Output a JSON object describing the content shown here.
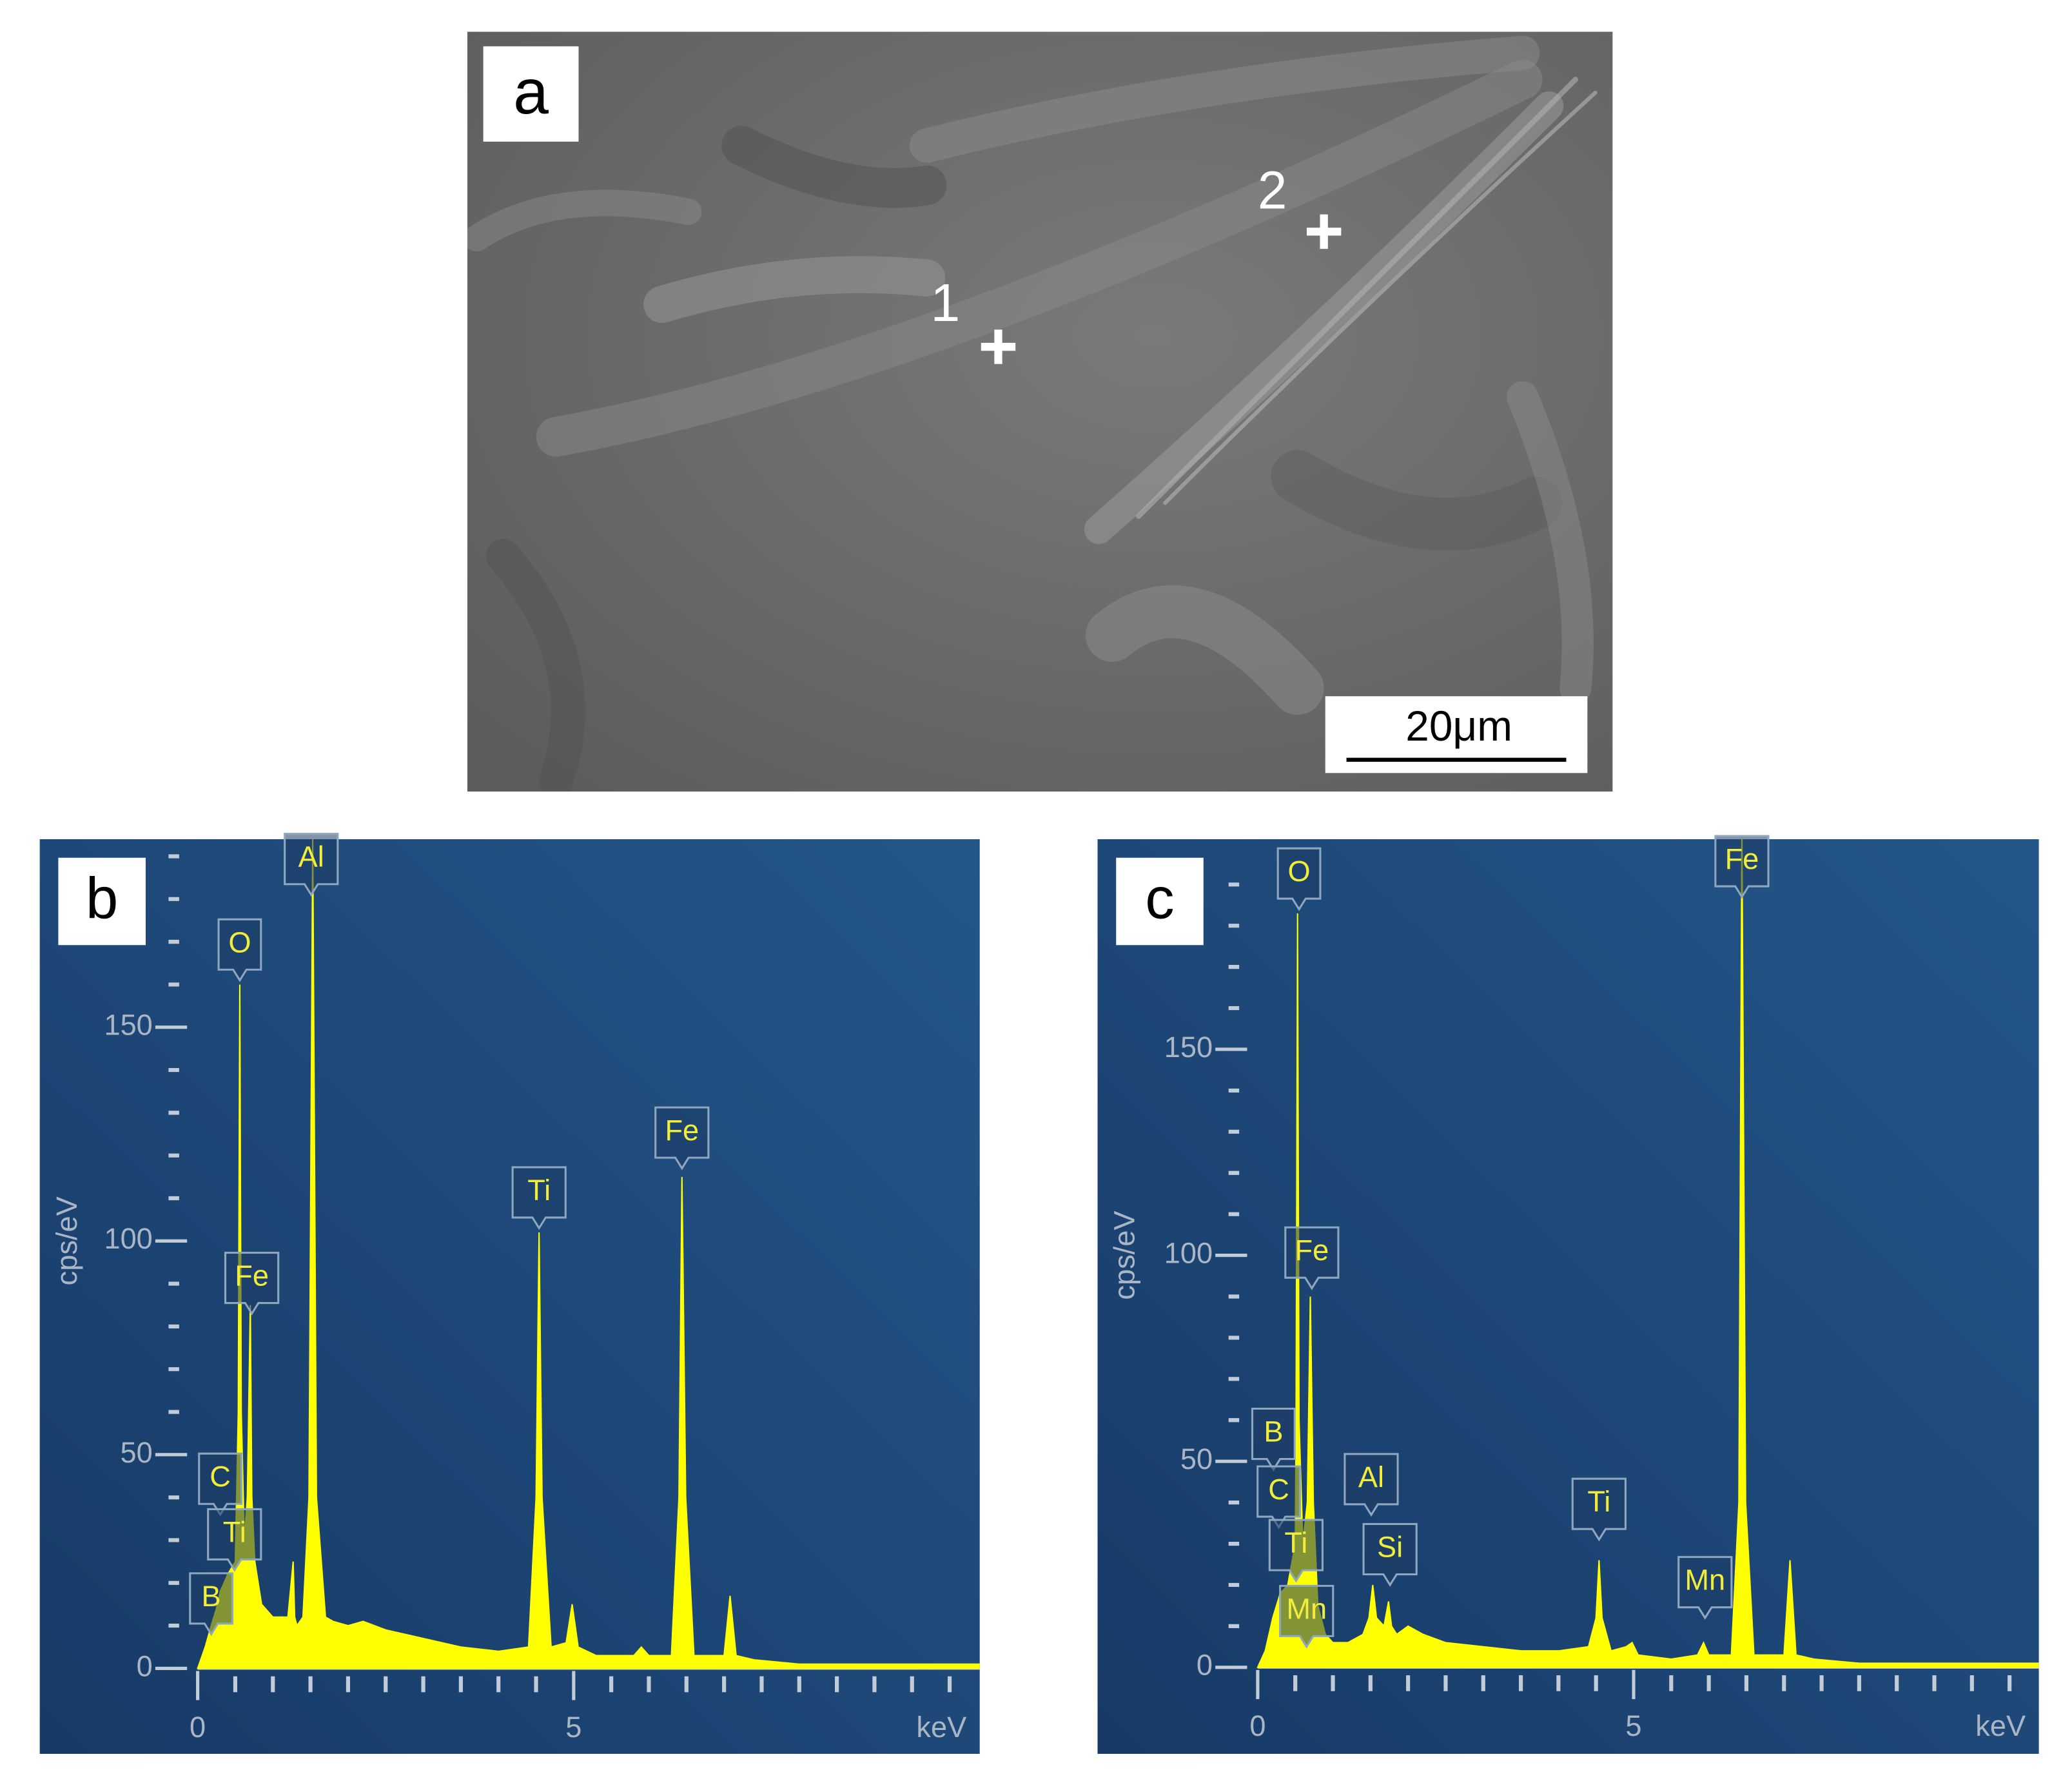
{
  "image": {
    "panel_label": "a",
    "points": [
      "1",
      "2"
    ],
    "scale_bar": "20μm"
  },
  "chart_data": [
    {
      "type": "area",
      "panel_label": "b",
      "x_label": "keV",
      "y_label": "cps/eV",
      "color": "#ffff00",
      "xlim": [
        -2.1,
        10.4
      ],
      "ylim": [
        -20,
        194
      ],
      "xticks": [
        0,
        5
      ],
      "yticks": [
        0,
        50,
        100,
        150
      ],
      "xminorticks": [
        0.5,
        1,
        1.5,
        2,
        2.5,
        3,
        3.5,
        4,
        4.5,
        5.5,
        6,
        6.5,
        7,
        7.5,
        8,
        8.5,
        9,
        9.5,
        10
      ],
      "yminorticks": [
        10,
        20,
        30,
        40,
        60,
        70,
        80,
        90,
        110,
        120,
        130,
        140,
        160,
        170,
        180,
        190
      ],
      "x": [
        0,
        0.1,
        0.18,
        0.25,
        0.3,
        0.4,
        0.5,
        0.54,
        0.56,
        0.58,
        0.62,
        0.66,
        0.7,
        0.72,
        0.76,
        0.85,
        1.0,
        1.2,
        1.27,
        1.29,
        1.32,
        1.4,
        1.48,
        1.53,
        1.58,
        1.7,
        1.8,
        2.0,
        2.2,
        2.5,
        3.0,
        3.5,
        4.0,
        4.4,
        4.5,
        4.54,
        4.58,
        4.7,
        4.9,
        4.98,
        5.06,
        5.3,
        5.8,
        5.9,
        6.0,
        6.3,
        6.4,
        6.44,
        6.49,
        6.6,
        7.0,
        7.08,
        7.16,
        7.4,
        8.0,
        9.0,
        10.0,
        10.4
      ],
      "values": [
        0,
        5,
        10,
        14,
        18,
        22,
        25,
        60,
        160,
        60,
        30,
        40,
        85,
        40,
        25,
        15,
        12,
        12,
        25,
        12,
        10,
        12,
        40,
        195,
        40,
        12,
        11,
        10,
        11,
        9,
        7,
        5,
        4,
        5,
        40,
        102,
        40,
        5,
        6,
        15,
        5,
        3,
        3,
        5,
        3,
        3,
        40,
        115,
        40,
        3,
        3,
        17,
        3,
        2,
        1,
        1,
        1,
        1
      ],
      "annotations": [
        {
          "text": "B",
          "x": 0.18,
          "y": 8
        },
        {
          "text": "C",
          "x": 0.3,
          "y": 36
        },
        {
          "text": "Ti",
          "x": 0.49,
          "y": 23
        },
        {
          "text": "O",
          "x": 0.56,
          "y": 161
        },
        {
          "text": "Fe",
          "x": 0.72,
          "y": 83
        },
        {
          "text": "Al",
          "x": 1.51,
          "y": 181
        },
        {
          "text": "Ti",
          "x": 4.54,
          "y": 103
        },
        {
          "text": "Fe",
          "x": 6.44,
          "y": 117
        }
      ]
    },
    {
      "type": "area",
      "panel_label": "c",
      "x_label": "keV",
      "y_label": "cps/eV",
      "color": "#ffff00",
      "xlim": [
        -2.13,
        10.39
      ],
      "ylim": [
        -21,
        201
      ],
      "xticks": [
        0,
        5
      ],
      "yticks": [
        0,
        50,
        100,
        150
      ],
      "xminorticks": [
        0.5,
        1,
        1.5,
        2,
        2.5,
        3,
        3.5,
        4,
        4.5,
        5.5,
        6,
        6.5,
        7,
        7.5,
        8,
        8.5,
        9,
        9.5,
        10
      ],
      "yminorticks": [
        10,
        20,
        30,
        40,
        60,
        70,
        80,
        90,
        110,
        120,
        130,
        140,
        160,
        170,
        180,
        190,
        200
      ],
      "x": [
        0,
        0.1,
        0.2,
        0.3,
        0.4,
        0.5,
        0.51,
        0.53,
        0.55,
        0.6,
        0.66,
        0.7,
        0.74,
        0.8,
        0.9,
        1.0,
        1.2,
        1.4,
        1.48,
        1.53,
        1.58,
        1.68,
        1.74,
        1.78,
        1.85,
        2.0,
        2.2,
        2.5,
        3.0,
        3.5,
        4.0,
        4.4,
        4.5,
        4.54,
        4.58,
        4.7,
        4.9,
        4.98,
        5.06,
        5.5,
        5.85,
        5.93,
        6.0,
        6.3,
        6.4,
        6.44,
        6.49,
        6.6,
        7.0,
        7.08,
        7.16,
        7.4,
        8.0,
        9.0,
        10.0,
        10.4
      ],
      "values": [
        0,
        4,
        12,
        18,
        20,
        30,
        60,
        183,
        60,
        30,
        40,
        90,
        40,
        15,
        8,
        6,
        6,
        8,
        12,
        20,
        12,
        10,
        16,
        10,
        8,
        10,
        8,
        6,
        5,
        4,
        4,
        5,
        12,
        26,
        12,
        4,
        5,
        6,
        3,
        2,
        3,
        6,
        3,
        3,
        40,
        205,
        40,
        3,
        3,
        26,
        3,
        2,
        1,
        1,
        1,
        1
      ],
      "annotations": [
        {
          "text": "O",
          "x": 0.55,
          "y": 184
        },
        {
          "text": "Fe",
          "x": 0.72,
          "y": 92
        },
        {
          "text": "B",
          "x": 0.21,
          "y": 48
        },
        {
          "text": "C",
          "x": 0.28,
          "y": 34
        },
        {
          "text": "Ti",
          "x": 0.51,
          "y": 21
        },
        {
          "text": "Mn",
          "x": 0.65,
          "y": 5
        },
        {
          "text": "Al",
          "x": 1.51,
          "y": 37
        },
        {
          "text": "Si",
          "x": 1.76,
          "y": 20
        },
        {
          "text": "Ti",
          "x": 4.54,
          "y": 31
        },
        {
          "text": "Mn",
          "x": 5.95,
          "y": 12
        },
        {
          "text": "Fe",
          "x": 6.44,
          "y": 187
        }
      ]
    }
  ]
}
